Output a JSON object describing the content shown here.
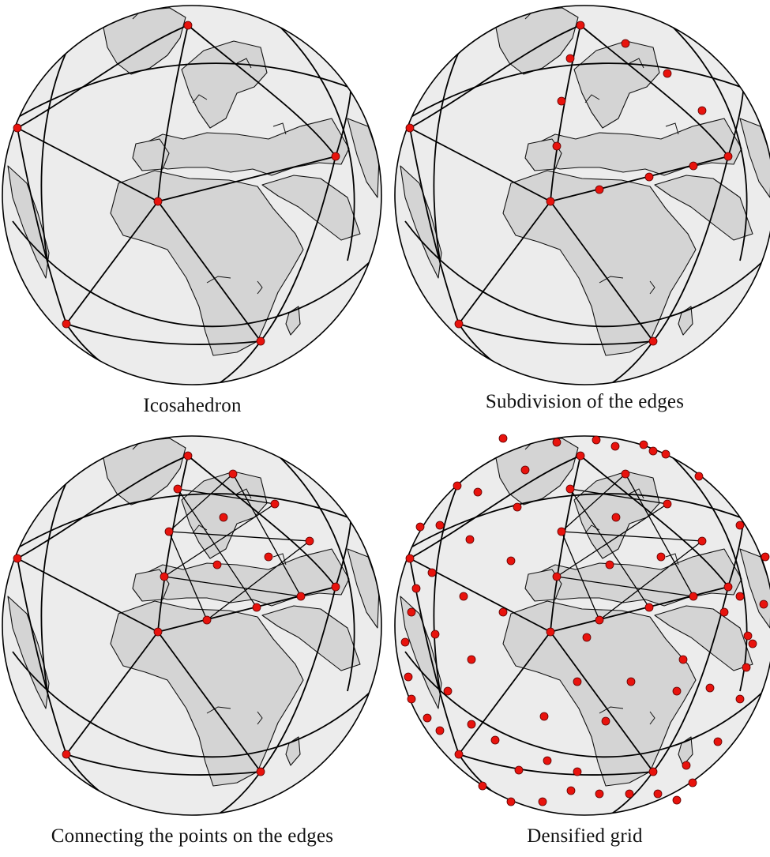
{
  "captions": {
    "p1": "Icosahedron",
    "p2": "Subdivision of the edges",
    "p3": "Connecting the points on the edges",
    "p4": "Densified grid"
  },
  "colors": {
    "ocean": "#ececec",
    "land": "#d4d4d4",
    "coast": "#111111",
    "edge": "#000000",
    "vertex": "#e8130d"
  }
}
